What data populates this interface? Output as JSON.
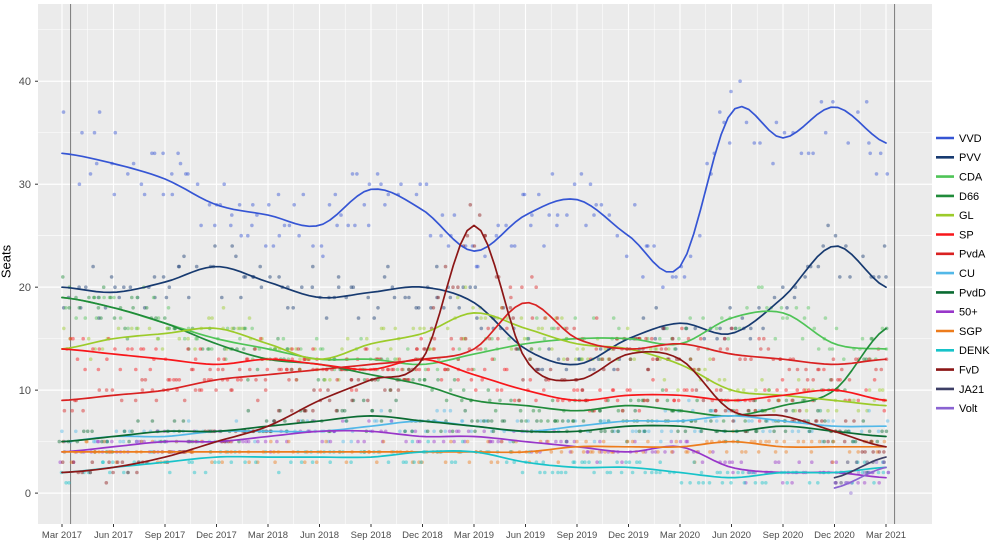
{
  "chart_data": {
    "type": "scatter+line",
    "title": "",
    "xlabel": "",
    "ylabel": "Seats",
    "x_tick_labels": [
      "Mar 2017",
      "Jun 2017",
      "Sep 2017",
      "Dec 2017",
      "Mar 2018",
      "Jun 2018",
      "Sep 2018",
      "Dec 2018",
      "Mar 2019",
      "Jun 2019",
      "Sep 2019",
      "Dec 2019",
      "Mar 2020",
      "Jun 2020",
      "Sep 2020",
      "Dec 2020",
      "Mar 2021"
    ],
    "anchor_months": [
      0,
      3,
      6,
      9,
      12,
      15,
      18,
      21,
      24,
      27,
      30,
      33,
      36,
      39,
      42,
      45,
      48
    ],
    "x_range_months": [
      0,
      48
    ],
    "y_ticks": [
      0,
      10,
      20,
      30,
      40
    ],
    "y_minor_ticks": [
      5,
      15,
      25,
      35,
      45
    ],
    "ylim": [
      -3,
      47.5
    ],
    "grid": true,
    "legend_position": "right",
    "vertical_marker_months": [
      0.5,
      48.5
    ],
    "colors": {
      "panel_bg": "#ebebeb",
      "grid": "#ffffff",
      "axis_text": "#4d4d4d",
      "tick_mark": "#333333",
      "marker_line": "#7a7a7a",
      "legend_text": "#000000"
    },
    "series": [
      {
        "name": "VVD",
        "color": "#3555d4",
        "values": [
          33,
          32,
          30.5,
          28,
          27,
          26,
          29.5,
          27.5,
          23.5,
          27,
          28.5,
          25,
          22,
          37,
          34.5,
          37.5,
          34
        ]
      },
      {
        "name": "PVV",
        "color": "#173a70",
        "values": [
          20,
          19.5,
          20.5,
          22,
          20.5,
          19,
          19.5,
          20,
          18.5,
          14,
          12.5,
          15,
          16.5,
          15.5,
          19,
          24,
          20
        ]
      },
      {
        "name": "CDA",
        "color": "#4fc457",
        "values": [
          19,
          18,
          16.5,
          15,
          14,
          13,
          13,
          12.5,
          13.5,
          14.5,
          15,
          15,
          14.5,
          17,
          17.5,
          14.5,
          14
        ]
      },
      {
        "name": "D66",
        "color": "#208b3a",
        "values": [
          19,
          18,
          16.5,
          14.5,
          13,
          12.5,
          11.5,
          10.5,
          9,
          8.5,
          8,
          8.5,
          8,
          7.5,
          8.5,
          10,
          16
        ]
      },
      {
        "name": "GL",
        "color": "#9ccb2a",
        "values": [
          14,
          15,
          15.5,
          16,
          14.5,
          13,
          14.5,
          15.5,
          17.5,
          16,
          14.5,
          14,
          12.5,
          10,
          9.5,
          9,
          8.5
        ]
      },
      {
        "name": "SP",
        "color": "#f8161a",
        "values": [
          14,
          13.5,
          13,
          12.5,
          13,
          12.5,
          12,
          13,
          11.5,
          10,
          9,
          9.5,
          9.5,
          9,
          9.5,
          10,
          9
        ]
      },
      {
        "name": "PvdA",
        "color": "#d92121",
        "values": [
          9,
          9.5,
          10,
          11,
          11.5,
          12,
          12.5,
          13,
          14,
          18.5,
          15,
          14,
          14.5,
          13.5,
          13,
          12.5,
          13
        ]
      },
      {
        "name": "CU",
        "color": "#52b8e8",
        "values": [
          5,
          5.5,
          5.5,
          6,
          6,
          6,
          6.5,
          7,
          6.5,
          6,
          6.5,
          7,
          7,
          7.5,
          7,
          6.5,
          6.5
        ]
      },
      {
        "name": "PvdD",
        "color": "#0a6b32",
        "values": [
          5,
          5.5,
          6,
          6,
          6.5,
          7,
          7.5,
          7,
          6.5,
          6,
          6,
          6.5,
          6.5,
          6,
          6.5,
          6,
          5.5
        ]
      },
      {
        "name": "50+",
        "color": "#9836c9",
        "values": [
          4,
          4.5,
          5,
          5,
          5.5,
          6,
          6,
          5.5,
          5.5,
          5,
          4.5,
          4,
          4.5,
          2.5,
          2,
          2,
          1.5
        ]
      },
      {
        "name": "SGP",
        "color": "#ed7c1c",
        "values": [
          4,
          4,
          4,
          4,
          4,
          4,
          4,
          4,
          4,
          4,
          4.5,
          4.5,
          4.5,
          5,
          4.5,
          4.5,
          4.5
        ]
      },
      {
        "name": "DENK",
        "color": "#17c3c9",
        "values": [
          2,
          2.5,
          3,
          3.5,
          3.5,
          3.5,
          3.5,
          4,
          4,
          3,
          2.5,
          2.5,
          2,
          1.5,
          2,
          2,
          2.5
        ]
      },
      {
        "name": "FvD",
        "color": "#8c1616",
        "values": [
          2,
          2.5,
          3.5,
          5,
          6.5,
          9,
          11,
          13,
          26,
          13,
          11,
          13.5,
          13,
          8,
          7.5,
          6,
          4.5
        ]
      },
      {
        "name": "JA21",
        "color": "#3d3f66",
        "values": [
          null,
          null,
          null,
          null,
          null,
          null,
          null,
          null,
          null,
          null,
          null,
          null,
          null,
          null,
          null,
          1.5,
          3.5
        ]
      },
      {
        "name": "Volt",
        "color": "#8a63d2",
        "values": [
          null,
          null,
          null,
          null,
          null,
          null,
          null,
          null,
          null,
          null,
          null,
          null,
          null,
          null,
          null,
          0.5,
          2.5
        ]
      }
    ]
  }
}
